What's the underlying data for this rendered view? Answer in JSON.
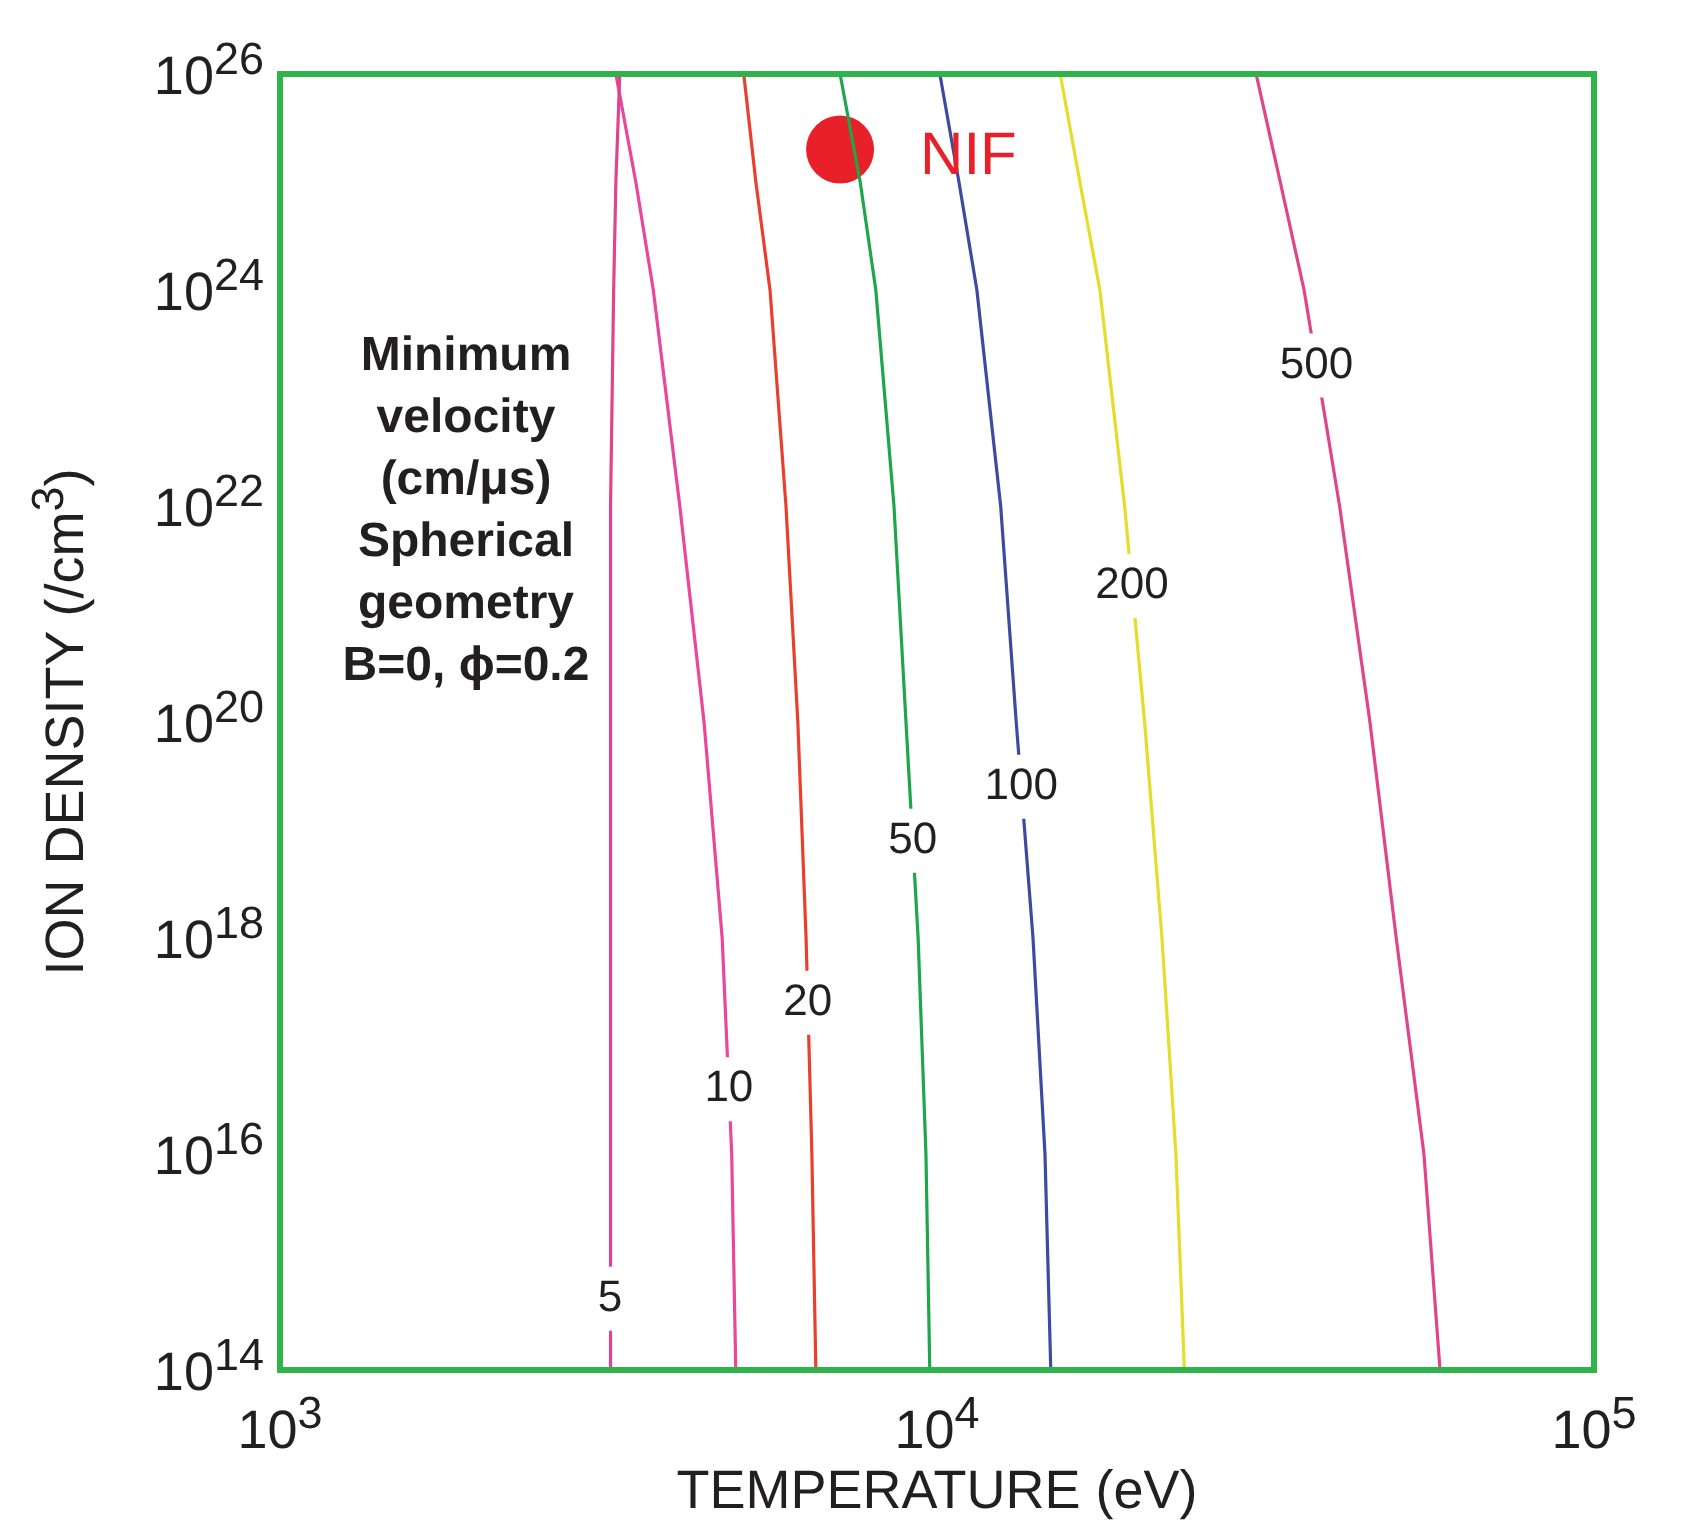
{
  "chart_data": {
    "type": "line",
    "xlabel": "TEMPERATURE (eV)",
    "ylabel": "ION DENSITY (/cm$^{3}$)",
    "log": "xy",
    "legend": false,
    "xlim": [
      1000,
      100000
    ],
    "xticks": [
      {
        "value": 1000,
        "label": "10$^{3}$"
      },
      {
        "value": 10000,
        "label": "10$^{4}$"
      },
      {
        "value": 100000,
        "label": "10$^{5}$"
      }
    ],
    "ylim": [
      100000000000000.0,
      1e+26
    ],
    "yticks": [
      {
        "value": 100000000000000.0,
        "label": "10$^{14}$"
      },
      {
        "value": 1e+16,
        "label": "10$^{16}$"
      },
      {
        "value": 1e+18,
        "label": "10$^{18}$"
      },
      {
        "value": 1e+20,
        "label": "10$^{20}$"
      },
      {
        "value": 1e+22,
        "label": "10$^{22}$"
      },
      {
        "value": 1e+24,
        "label": "10$^{24}$"
      },
      {
        "value": 1e+26,
        "label": "10$^{26}$"
      }
    ],
    "annotations": [
      "Minimum\nvelocity\n(cm/μs)\nSpherical\ngeometry\nB=0, ϕ=0.2"
    ],
    "series": [
      {
        "name": "5",
        "color": "#e0448c",
        "x": [
          3180,
          3180,
          3180,
          3180,
          3200,
          3220,
          3245,
          3290
        ],
        "values": [
          100000000000000.0,
          1e+16,
          1e+18,
          1e+20,
          1e+22,
          1e+24,
          1e+25,
          1e+26
        ]
      },
      {
        "name": "10",
        "color": "#e8479a",
        "x": [
          4940,
          4870,
          4710,
          4420,
          4060,
          3700,
          3480,
          3245
        ],
        "values": [
          100000000000000.0,
          1e+16,
          1e+18,
          1e+20,
          1e+22,
          1e+24,
          1e+25,
          1e+26
        ]
      },
      {
        "name": "20",
        "color": "#e8402d",
        "x": [
          6540,
          6450,
          6320,
          6140,
          5890,
          5570,
          5300,
          5080
        ],
        "values": [
          100000000000000.0,
          1e+16,
          1e+18,
          1e+20,
          1e+22,
          1e+24,
          1e+25,
          1e+26
        ]
      },
      {
        "name": "50",
        "color": "#1fa64a",
        "x": [
          9750,
          9620,
          9360,
          8970,
          8600,
          8070,
          7640,
          7120
        ],
        "values": [
          100000000000000.0,
          1e+16,
          1e+18,
          1e+20,
          1e+22,
          1e+24,
          1e+25,
          1e+26
        ]
      },
      {
        "name": "100",
        "color": "#3c4aa0",
        "x": [
          14900,
          14600,
          14000,
          13200,
          12500,
          11500,
          10800,
          10100
        ],
        "values": [
          100000000000000.0,
          1e+16,
          1e+18,
          1e+20,
          1e+22,
          1e+24,
          1e+25,
          1e+26
        ]
      },
      {
        "name": "200",
        "color": "#e6dc2a",
        "x": [
          23800,
          23100,
          22000,
          20700,
          19300,
          17700,
          16500,
          15400
        ],
        "values": [
          100000000000000.0,
          1e+16,
          1e+18,
          1e+20,
          1e+22,
          1e+24,
          1e+25,
          1e+26
        ]
      },
      {
        "name": "500",
        "color": "#e0448c",
        "x": [
          58300,
          55100,
          50000,
          45600,
          41000,
          36200,
          33300,
          30600
        ],
        "values": [
          100000000000000.0,
          1e+16,
          1e+18,
          1e+20,
          1e+22,
          1e+24,
          1e+25,
          1e+26
        ]
      },
      {
        "name": "NIF",
        "type": "scatter",
        "color": "#e8202a",
        "x": [
          7120
        ],
        "values": [
          2e+25
        ]
      }
    ]
  }
}
